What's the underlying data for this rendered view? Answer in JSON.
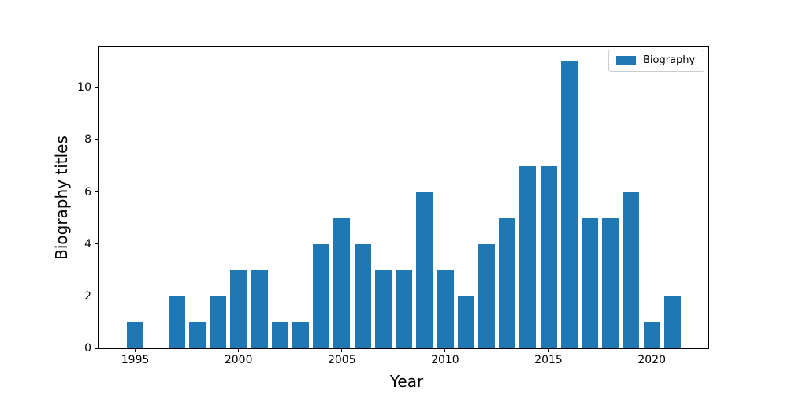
{
  "figure": {
    "background": "#ffffff",
    "axis_color": "#000000",
    "legend_border_color": "#cccccc"
  },
  "chart_data": {
    "type": "bar",
    "xlabel": "Year",
    "ylabel": "Biography titles",
    "legend_label": "Biography",
    "legend_position": "upper-right",
    "legend_swatch": "bar-color-swatch",
    "bar_color": "#1f77b4",
    "bar_width": 0.8,
    "categories": [
      1995,
      1997,
      1998,
      1999,
      2000,
      2001,
      2002,
      2003,
      2004,
      2005,
      2006,
      2007,
      2008,
      2009,
      2010,
      2011,
      2012,
      2013,
      2014,
      2015,
      2016,
      2017,
      2018,
      2019,
      2020,
      2021
    ],
    "values": [
      1,
      2,
      1,
      2,
      3,
      3,
      1,
      1,
      4,
      5,
      4,
      3,
      3,
      6,
      3,
      2,
      4,
      5,
      7,
      7,
      11,
      5,
      5,
      6,
      1,
      2
    ],
    "xlim": [
      1993.26,
      2022.74
    ],
    "ylim": [
      0,
      11.55
    ],
    "xticks": [
      1995,
      2000,
      2005,
      2010,
      2015,
      2020
    ],
    "yticks": [
      0,
      2,
      4,
      6,
      8,
      10
    ],
    "grid": false
  }
}
